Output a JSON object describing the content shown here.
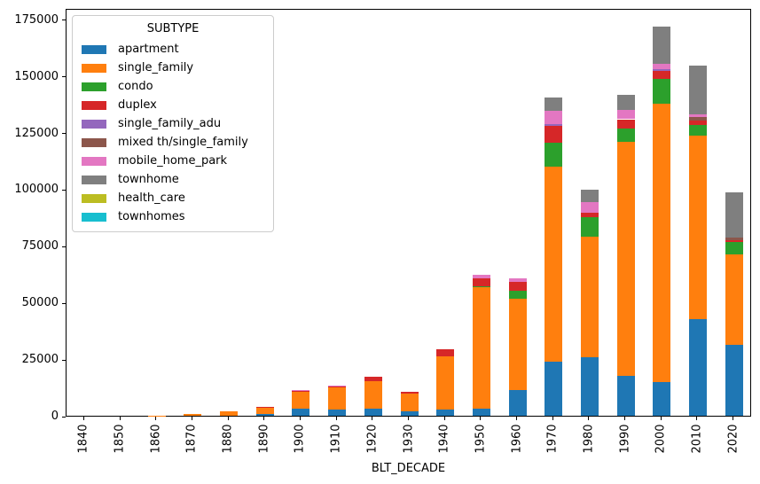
{
  "figure": {
    "xlabel": "BLT_DECADE",
    "legend_title": "SUBTYPE"
  },
  "chart_data": {
    "type": "bar",
    "stacked": true,
    "title": "",
    "xlabel": "BLT_DECADE",
    "ylabel": "",
    "grid": false,
    "legend_position": "upper-left",
    "ylim": [
      0,
      180000
    ],
    "yticks": [
      0,
      25000,
      50000,
      75000,
      100000,
      125000,
      150000,
      175000
    ],
    "categories": [
      "1840",
      "1850",
      "1860",
      "1870",
      "1880",
      "1890",
      "1900",
      "1910",
      "1920",
      "1930",
      "1940",
      "1950",
      "1960",
      "1970",
      "1980",
      "1990",
      "2000",
      "2010",
      "2020"
    ],
    "series": [
      {
        "name": "apartment",
        "color": "#1f77b4",
        "values": [
          0,
          0,
          0,
          0,
          0,
          700,
          3000,
          2600,
          3000,
          1900,
          2800,
          3200,
          11300,
          24000,
          26000,
          17800,
          14800,
          42500,
          31200
        ]
      },
      {
        "name": "single_family",
        "color": "#ff7f0e",
        "values": [
          0,
          0,
          100,
          900,
          1800,
          3100,
          7600,
          9800,
          12400,
          7700,
          23500,
          53400,
          40400,
          86000,
          53200,
          103000,
          123000,
          81000,
          40000
        ]
      },
      {
        "name": "condo",
        "color": "#2ca02c",
        "values": [
          0,
          0,
          0,
          0,
          0,
          0,
          0,
          0,
          0,
          0,
          0,
          700,
          3500,
          10400,
          8500,
          5900,
          11000,
          5000,
          5600
        ]
      },
      {
        "name": "duplex",
        "color": "#d62728",
        "values": [
          0,
          0,
          0,
          0,
          0,
          300,
          350,
          800,
          2000,
          1000,
          3000,
          3200,
          3900,
          7400,
          2000,
          4200,
          3300,
          1800,
          800
        ]
      },
      {
        "name": "single_family_adu",
        "color": "#9467bd",
        "values": [
          0,
          0,
          0,
          0,
          0,
          0,
          0,
          0,
          0,
          0,
          0,
          0,
          0,
          1000,
          0,
          0,
          1000,
          0,
          0
        ]
      },
      {
        "name": "mixed th/single_family",
        "color": "#8c564b",
        "values": [
          0,
          0,
          0,
          0,
          0,
          0,
          0,
          0,
          0,
          0,
          0,
          0,
          0,
          0,
          0,
          0,
          0,
          1400,
          1000
        ]
      },
      {
        "name": "mobile_home_park",
        "color": "#e377c2",
        "values": [
          0,
          0,
          0,
          0,
          0,
          0,
          300,
          300,
          0,
          0,
          0,
          1900,
          1700,
          5900,
          4600,
          4300,
          2200,
          1500,
          0
        ]
      },
      {
        "name": "townhome",
        "color": "#7f7f7f",
        "values": [
          0,
          0,
          0,
          0,
          0,
          0,
          0,
          0,
          0,
          0,
          0,
          0,
          0,
          5600,
          5500,
          6500,
          16500,
          21500,
          20000
        ]
      },
      {
        "name": "health_care",
        "color": "#bcbd22",
        "values": [
          0,
          0,
          0,
          0,
          0,
          0,
          0,
          0,
          0,
          0,
          0,
          0,
          0,
          0,
          0,
          0,
          0,
          0,
          0
        ]
      },
      {
        "name": "townhomes",
        "color": "#17becf",
        "values": [
          0,
          0,
          0,
          0,
          0,
          0,
          0,
          0,
          0,
          0,
          0,
          0,
          0,
          0,
          0,
          0,
          0,
          0,
          0
        ]
      }
    ]
  }
}
